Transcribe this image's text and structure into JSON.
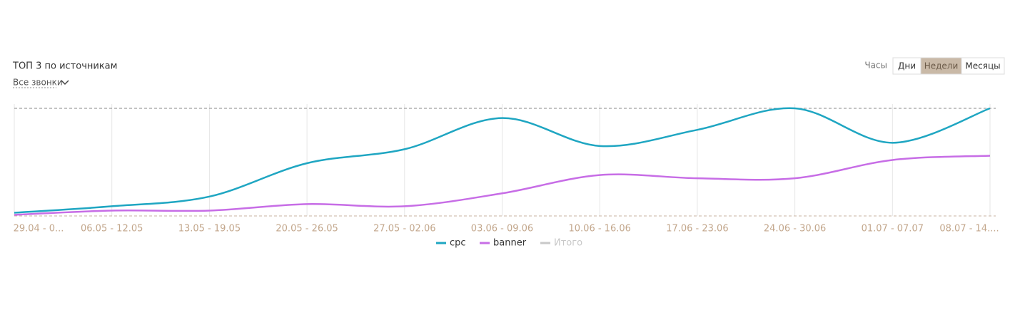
{
  "chart_data": {
    "type": "line",
    "title": "ТОП 3 по источникам",
    "categories": [
      "29.04 - 0...",
      "06.05 - 12.05",
      "13.05 - 19.05",
      "20.05 - 26.05",
      "27.05 - 02.06",
      "03.06 - 09.06",
      "10.06 - 16.06",
      "17.06 - 23.06",
      "24.06 - 30.06",
      "01.07 - 07.07",
      "08.07 - 14...."
    ],
    "series": [
      {
        "name": "cpc",
        "color": "#1fa6c2",
        "values": [
          3,
          9,
          18,
          49,
          62,
          91,
          65,
          80,
          100,
          68,
          100
        ]
      },
      {
        "name": "banner",
        "color": "#c76de6",
        "values": [
          1,
          5,
          5,
          11,
          9,
          21,
          38,
          35,
          35,
          52,
          56
        ]
      },
      {
        "name": "Итого",
        "color": "#c8c8c8",
        "hidden": true,
        "values": [
          null,
          null,
          null,
          null,
          null,
          null,
          null,
          null,
          null,
          null,
          null
        ]
      }
    ],
    "ylim": [
      0,
      100
    ],
    "grid": true
  },
  "ui": {
    "dropdown": "Все звонки",
    "period_label": "Часы",
    "buttons": [
      {
        "label": "Дни",
        "selected": false
      },
      {
        "label": "Недели",
        "selected": true
      },
      {
        "label": "Месяцы",
        "selected": false
      }
    ]
  }
}
